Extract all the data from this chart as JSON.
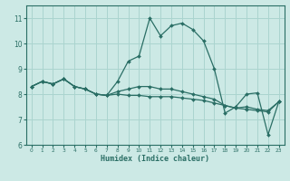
{
  "xlabel": "Humidex (Indice chaleur)",
  "xlim": [
    -0.5,
    23.5
  ],
  "ylim": [
    6,
    11.5
  ],
  "yticks": [
    6,
    7,
    8,
    9,
    10,
    11
  ],
  "xticks": [
    0,
    1,
    2,
    3,
    4,
    5,
    6,
    7,
    8,
    9,
    10,
    11,
    12,
    13,
    14,
    15,
    16,
    17,
    18,
    19,
    20,
    21,
    22,
    23
  ],
  "background_color": "#cce9e5",
  "grid_color": "#aad4cf",
  "line_color": "#2a6e65",
  "lines": [
    {
      "x": [
        0,
        1,
        2,
        3,
        4,
        5,
        6,
        7,
        8,
        9,
        10,
        11,
        12,
        13,
        14,
        15,
        16,
        17,
        18,
        19,
        20,
        21,
        22,
        23
      ],
      "y": [
        8.3,
        8.5,
        8.4,
        8.6,
        8.3,
        8.2,
        8.0,
        7.95,
        8.5,
        9.3,
        9.5,
        11.0,
        10.3,
        10.7,
        10.8,
        10.55,
        10.1,
        9.0,
        7.25,
        7.5,
        8.0,
        8.05,
        6.4,
        7.7
      ]
    },
    {
      "x": [
        0,
        1,
        2,
        3,
        4,
        5,
        6,
        7,
        8,
        9,
        10,
        11,
        12,
        13,
        14,
        15,
        16,
        17,
        18,
        19,
        20,
        21,
        22,
        23
      ],
      "y": [
        8.3,
        8.5,
        8.4,
        8.6,
        8.3,
        8.2,
        8.0,
        7.95,
        8.1,
        8.2,
        8.3,
        8.3,
        8.2,
        8.2,
        8.1,
        8.0,
        7.9,
        7.8,
        7.55,
        7.45,
        7.5,
        7.4,
        7.35,
        7.7
      ]
    },
    {
      "x": [
        0,
        1,
        2,
        3,
        4,
        5,
        6,
        7,
        8,
        9,
        10,
        11,
        12,
        13,
        14,
        15,
        16,
        17,
        18,
        19,
        20,
        21,
        22,
        23
      ],
      "y": [
        8.3,
        8.5,
        8.4,
        8.6,
        8.3,
        8.2,
        8.0,
        7.95,
        8.0,
        7.95,
        7.95,
        7.9,
        7.9,
        7.9,
        7.85,
        7.8,
        7.75,
        7.65,
        7.55,
        7.45,
        7.4,
        7.35,
        7.3,
        7.7
      ]
    }
  ]
}
